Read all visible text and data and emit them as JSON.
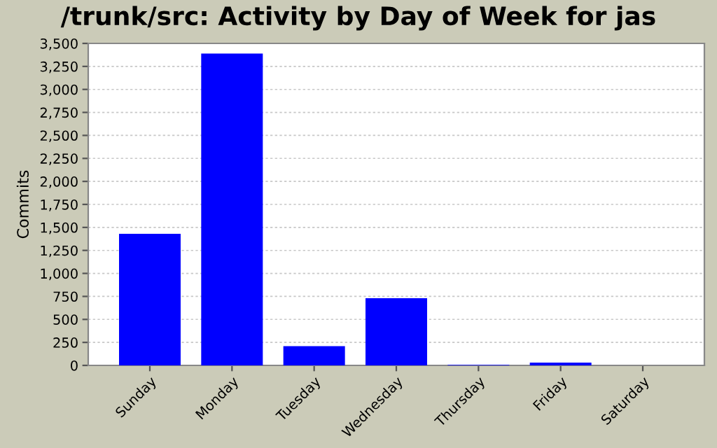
{
  "chart_data": {
    "type": "bar",
    "title": "/trunk/src: Activity by Day of Week for jas",
    "ylabel": "Commits",
    "categories": [
      "Sunday",
      "Monday",
      "Tuesday",
      "Wednesday",
      "Thursday",
      "Friday",
      "Saturday"
    ],
    "values": [
      1430,
      3390,
      210,
      730,
      5,
      30,
      0
    ],
    "color": "#0000ff",
    "ylim": [
      0,
      3500
    ],
    "yticks": [
      0,
      250,
      500,
      750,
      {
        "value": 1000,
        "label": "1,000"
      },
      {
        "value": 1250,
        "label": "1,250"
      },
      {
        "value": 1500,
        "label": "1,500"
      },
      {
        "value": 1750,
        "label": "1,750"
      },
      {
        "value": 2000,
        "label": "2,000"
      },
      {
        "value": 2250,
        "label": "2,250"
      },
      {
        "value": 2500,
        "label": "2,500"
      },
      {
        "value": 2750,
        "label": "2,750"
      },
      {
        "value": 3000,
        "label": "3,000"
      },
      {
        "value": 3250,
        "label": "3,250"
      },
      {
        "value": 3500,
        "label": "3,500"
      }
    ],
    "grid": "y"
  }
}
